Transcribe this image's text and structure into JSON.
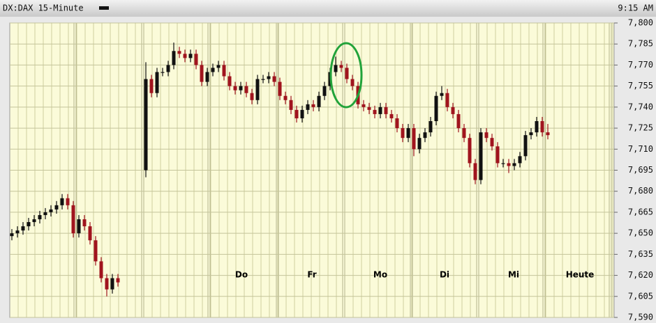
{
  "chart_data": {
    "type": "candlestick",
    "title": "DX:DAX 15-Minute",
    "time": "9:15 AM",
    "annotations": [
      "Do",
      "Fr",
      "Mo",
      "Di",
      "Mi",
      "Heute"
    ],
    "up_color": "#111111",
    "down_color": "#a0141e",
    "grid": true,
    "ylim": [
      7590,
      7800
    ],
    "yticks": [
      {
        "value": 7590,
        "label": "7,590"
      },
      {
        "value": 7605,
        "label": "7,605"
      },
      {
        "value": 7620,
        "label": "7,620"
      },
      {
        "value": 7635,
        "label": "7,635"
      },
      {
        "value": 7650,
        "label": "7,650"
      },
      {
        "value": 7665,
        "label": "7,665"
      },
      {
        "value": 7680,
        "label": "7,680"
      },
      {
        "value": 7695,
        "label": "7,695"
      },
      {
        "value": 7710,
        "label": "7,710"
      },
      {
        "value": 7725,
        "label": "7,725"
      },
      {
        "value": 7740,
        "label": "7,740"
      },
      {
        "value": 7755,
        "label": "7,755"
      },
      {
        "value": 7770,
        "label": "7,770"
      },
      {
        "value": 7785,
        "label": "7,785"
      },
      {
        "value": 7800,
        "label": "7,800"
      }
    ],
    "open": [
      7648,
      7650,
      7652,
      7655,
      7658,
      7660,
      7663,
      7665,
      7667,
      7670,
      7675,
      7670,
      7650,
      7660,
      7655,
      7645,
      7630,
      7618,
      7610,
      7618,
      null,
      null,
      null,
      null,
      7695,
      7760,
      7750,
      7765,
      7765,
      7770,
      7780,
      7778,
      7775,
      7778,
      7770,
      7758,
      7765,
      7768,
      7770,
      7762,
      7755,
      7752,
      7755,
      7750,
      7745,
      7760,
      7760,
      7762,
      7758,
      7748,
      7745,
      7738,
      7732,
      7738,
      7742,
      7740,
      7748,
      7755,
      7765,
      7770,
      7768,
      7760,
      7755,
      7742,
      7740,
      7738,
      7735,
      7740,
      7735,
      7732,
      7725,
      7718,
      7725,
      7710,
      7718,
      7722,
      7730,
      7748,
      7750,
      7740,
      7735,
      7725,
      7718,
      7700,
      7688,
      7722,
      7718,
      7712,
      7700,
      7700,
      7698,
      7700,
      7705,
      7720,
      7722,
      7730,
      7722
    ],
    "high": [
      7653,
      7655,
      7658,
      7661,
      7663,
      7666,
      7668,
      7670,
      7673,
      7678,
      7678,
      7673,
      7663,
      7663,
      7658,
      7648,
      7633,
      7621,
      7621,
      7621,
      null,
      null,
      null,
      null,
      7772,
      7763,
      7768,
      7768,
      7773,
      7786,
      7783,
      7781,
      7781,
      7781,
      7773,
      7768,
      7771,
      7773,
      7773,
      7765,
      7758,
      7758,
      7758,
      7753,
      7763,
      7763,
      7765,
      7765,
      7761,
      7751,
      7748,
      7741,
      7741,
      7745,
      7745,
      7751,
      7758,
      7768,
      7776,
      7773,
      7771,
      7763,
      7758,
      7745,
      7743,
      7741,
      7743,
      7743,
      7738,
      7735,
      7728,
      7728,
      7728,
      7721,
      7725,
      7733,
      7751,
      7755,
      7753,
      7743,
      7738,
      7728,
      7721,
      7703,
      7725,
      7725,
      7721,
      7715,
      7703,
      7703,
      7703,
      7708,
      7723,
      7725,
      7733,
      7733,
      7728
    ],
    "low": [
      7645,
      7647,
      7649,
      7652,
      7655,
      7657,
      7660,
      7662,
      7664,
      7667,
      7667,
      7647,
      7647,
      7652,
      7642,
      7627,
      7615,
      7605,
      7607,
      7612,
      null,
      null,
      null,
      null,
      7690,
      7747,
      7747,
      7762,
      7762,
      7767,
      7775,
      7772,
      7772,
      7767,
      7755,
      7755,
      7762,
      7765,
      7759,
      7752,
      7749,
      7749,
      7747,
      7742,
      7742,
      7757,
      7757,
      7755,
      7745,
      7742,
      7735,
      7729,
      7729,
      7735,
      7737,
      7737,
      7745,
      7752,
      7762,
      7765,
      7757,
      7752,
      7739,
      7737,
      7735,
      7732,
      7732,
      7732,
      7729,
      7722,
      7715,
      7715,
      7705,
      7707,
      7715,
      7719,
      7727,
      7745,
      7737,
      7732,
      7722,
      7715,
      7697,
      7685,
      7685,
      7715,
      7709,
      7697,
      7697,
      7693,
      7695,
      7697,
      7702,
      7717,
      7719,
      7719,
      7717
    ],
    "close": [
      7650,
      7652,
      7655,
      7658,
      7660,
      7663,
      7665,
      7667,
      7670,
      7675,
      7670,
      7650,
      7660,
      7655,
      7645,
      7630,
      7618,
      7610,
      7618,
      7615,
      null,
      null,
      null,
      null,
      7760,
      7750,
      7765,
      7765,
      7770,
      7780,
      7778,
      7775,
      7778,
      7770,
      7758,
      7765,
      7768,
      7770,
      7762,
      7755,
      7752,
      7755,
      7750,
      7745,
      7760,
      7760,
      7762,
      7758,
      7748,
      7745,
      7738,
      7732,
      7738,
      7742,
      7740,
      7748,
      7755,
      7765,
      7770,
      7768,
      7760,
      7755,
      7742,
      7740,
      7738,
      7735,
      7740,
      7735,
      7732,
      7725,
      7718,
      7725,
      7710,
      7718,
      7722,
      7730,
      7748,
      7750,
      7740,
      7735,
      7725,
      7718,
      7700,
      7688,
      7722,
      7718,
      7712,
      7700,
      7700,
      7698,
      7700,
      7705,
      7720,
      7722,
      7730,
      7722,
      7720
    ]
  }
}
